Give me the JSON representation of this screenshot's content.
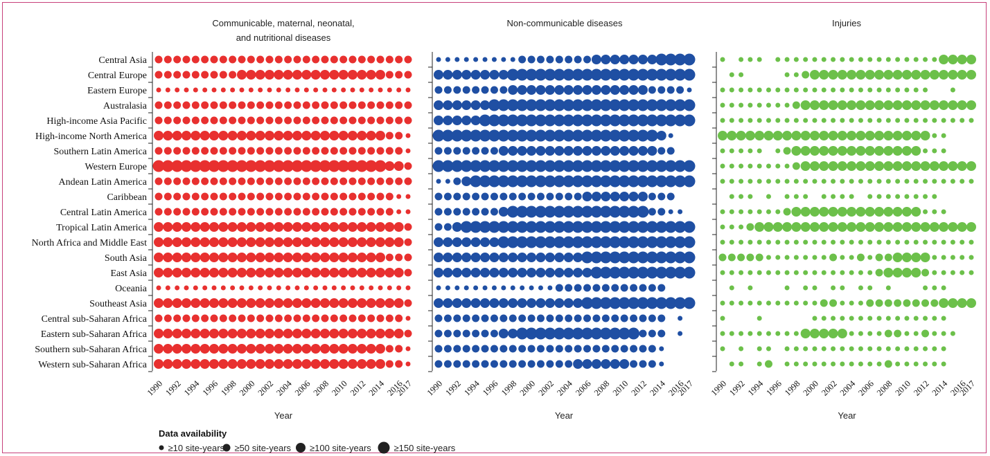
{
  "chart_data": {
    "type": "scatter",
    "size_encoding": "data availability (site-years)",
    "colors": {
      "panel_1": "#e8302f",
      "panel_2": "#1f4fa3",
      "panel_3": "#6cc04a"
    },
    "regions": [
      "Central Asia",
      "Central Europe",
      "Eastern Europe",
      "Australasia",
      "High-income Asia Pacific",
      "High-income North America",
      "Southern Latin America",
      "Western Europe",
      "Andean Latin America",
      "Caribbean",
      "Central Latin America",
      "Tropical Latin America",
      "North Africa and Middle East",
      "South Asia",
      "East Asia",
      "Oceania",
      "Southeast Asia",
      "Central sub-Saharan Africa",
      "Eastern sub-Saharan Africa",
      "Southern sub-Saharan Africa",
      "Western sub-Saharan Africa"
    ],
    "years": [
      1990,
      1991,
      1992,
      1993,
      1994,
      1995,
      1996,
      1997,
      1998,
      1999,
      2000,
      2001,
      2002,
      2003,
      2004,
      2005,
      2006,
      2007,
      2008,
      2009,
      2010,
      2011,
      2012,
      2013,
      2014,
      2015,
      2016,
      2017
    ],
    "year_tick_labels": [
      "1990",
      "1992",
      "1994",
      "1996",
      "1998",
      "2000",
      "2002",
      "2004",
      "2006",
      "2008",
      "2010",
      "2012",
      "2014",
      "2016",
      "2017"
    ],
    "xlabel": "Year",
    "legend": {
      "title": "Data availability",
      "items": [
        {
          "label": "≥10 site-years",
          "level": 1
        },
        {
          "label": "≥50 site-years",
          "level": 2
        },
        {
          "label": "≥100 site-years",
          "level": 3
        },
        {
          "label": "≥150 site-years",
          "level": 4
        }
      ]
    },
    "panels": [
      {
        "title_lines": [
          "Communicable, maternal, neonatal,",
          "and nutritional diseases"
        ],
        "color_key": "panel_1",
        "levels": [
          "2222222222222222222222222222",
          "2222222223333333333333333222",
          "1111111111111111111111111111",
          "2222222222222222222222222222",
          "2222222222222222222222222222",
          "3333333333333333333333333221",
          "2222222222222222222222222221",
          "4444444444444444444444444332",
          "2222222222222222222222222222",
          "2222222222222222222222222211",
          "2222222222222222222222222211",
          "3333333333333333333333333332",
          "3333333333333333333333333332",
          "3333333333333333333333333222",
          "3333333333333333333333333332",
          "1111111111111111111111111111",
          "3333333333333333333333333332",
          "2222222222222222222222222221",
          "3333333333333333333333333332",
          "3333333333333333333333333221",
          "3333333333333333333333333221"
        ]
      },
      {
        "title_lines": [
          "Non-communicable diseases"
        ],
        "color_key": "panel_2",
        "levels": [
          "1111111112222222233333334444",
          "3333333344444444444444444444",
          "2222222233333333333333322221",
          "3333334444444444444444444444",
          "3333344444444444444444444444",
          "4444444444444444444444443100",
          "2222222333333333333333332200",
          "4444444444444444444444444444",
          "1123444444444444444444444444",
          "2222222222222222333333322200",
          "2222222344444444444444422110",
          "2234444444444444444444444444",
          "3333333444444444444444444444",
          "3333333333333333444444444444",
          "3333333333333333344444444444",
          "1111111111111222222222222000",
          "3333333333333333444444444444",
          "2222222222222222222222222010",
          "2222222334444444444444222010",
          "2222222222222222222222221000",
          "2222222222222223333332221000"
        ]
      },
      {
        "title_lines": [
          "Injuries"
        ],
        "color_key": "panel_3",
        "levels": [
          "1011101111111111111111113333",
          "0110000112333333333333333333",
          "1111111111111111111111100100",
          "1111111123333333333333333333",
          "1111111111111111111111111111",
          "3333333333333333333333311000",
          "1111101233333333333333111000",
          "1111111123333333333333333333",
          "1111111111111111111111111111",
          "0111010111011110111111110000",
          "1111111233333333333333111000",
          "1112333333333333333333333333",
          "1111111111111111111111111111",
          "2222211111112112122333311111",
          "1111111111111111123333211111",
          "0101000101101101101000111000",
          "1111111111122111222222223333",
          "1000100000111111111111111000",
          "1111111113333311112211211100",
          "1010110111111111111111111000",
          "0110120111111111112111111000"
        ]
      }
    ]
  }
}
